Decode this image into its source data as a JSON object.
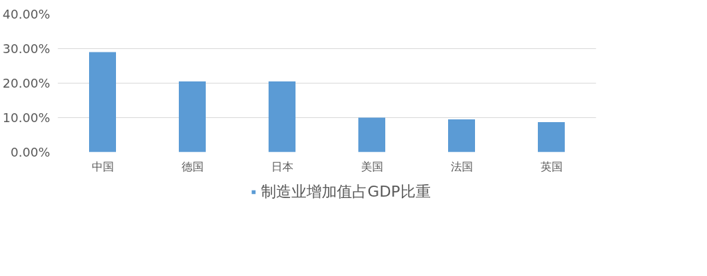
{
  "chart_data": {
    "type": "bar",
    "categories": [
      "中国",
      "德国",
      "日本",
      "美国",
      "法国",
      "英国"
    ],
    "series": [
      {
        "name": "制造业增加值占GDP比重",
        "color": "#5b9bd5",
        "values": [
          29.0,
          20.5,
          20.5,
          10.0,
          9.5,
          8.7
        ]
      }
    ],
    "ylim": [
      0,
      40
    ],
    "yticks": [
      {
        "value": 0,
        "label": "0.00%"
      },
      {
        "value": 10,
        "label": "10.00%"
      },
      {
        "value": 20,
        "label": "20.00%"
      },
      {
        "value": 30,
        "label": "30.00%"
      },
      {
        "value": 40,
        "label": "40.00%"
      }
    ],
    "grid": "y",
    "legend": "bottom"
  }
}
